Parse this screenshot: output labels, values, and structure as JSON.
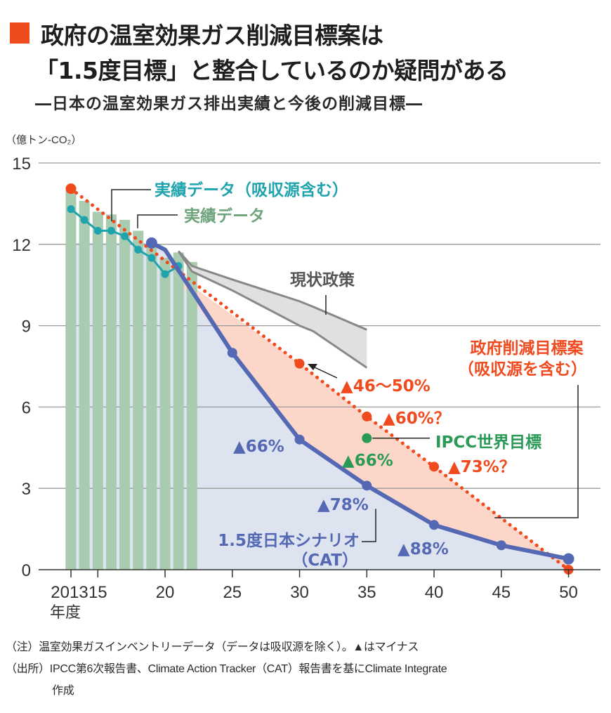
{
  "header": {
    "title_line1": "政府の温室効果ガス削減目標案は",
    "title_line2": "「1.5度目標」と整合しているのか疑問がある",
    "subtitle": "―日本の温室効果ガス排出実績と今後の削減目標―",
    "accent_color": "#f04a1f"
  },
  "chart_data": {
    "type": "line",
    "title": "日本の温室効果ガス排出実績と今後の削減目標",
    "ylabel": "（億トン-CO₂）",
    "xlabel": "年度",
    "ylim": [
      0,
      15
    ],
    "xlim": [
      2012,
      2052
    ],
    "y_ticks": [
      0,
      3,
      6,
      9,
      12,
      15
    ],
    "x_ticks": [
      {
        "value": 2013,
        "label": "2013"
      },
      {
        "value": 2015,
        "label": "15"
      },
      {
        "value": 2020,
        "label": "20"
      },
      {
        "value": 2025,
        "label": "25"
      },
      {
        "value": 2030,
        "label": "30"
      },
      {
        "value": 2035,
        "label": "35"
      },
      {
        "value": 2040,
        "label": "40"
      },
      {
        "value": 2045,
        "label": "45"
      },
      {
        "value": 2050,
        "label": "50"
      }
    ],
    "x_unit_label": "年度",
    "grid": true,
    "series": [
      {
        "name": "実績データ",
        "kind": "bar",
        "color": "#a9cbb0",
        "label_color": "#6fa37c",
        "x": [
          2013,
          2014,
          2015,
          2016,
          2017,
          2018,
          2019,
          2020,
          2021,
          2022
        ],
        "values": [
          14.1,
          13.6,
          13.2,
          13.1,
          12.9,
          12.5,
          12.1,
          11.5,
          11.7,
          11.35
        ]
      },
      {
        "name": "実績データ（吸収源含む）",
        "kind": "line",
        "color": "#1fa3ad",
        "x": [
          2013,
          2014,
          2015,
          2016,
          2017,
          2018,
          2019,
          2020,
          2021
        ],
        "values": [
          13.3,
          12.9,
          12.5,
          12.5,
          12.3,
          11.8,
          11.5,
          10.9,
          11.2
        ]
      },
      {
        "name": "1.5度日本シナリオ（CAT）",
        "kind": "line",
        "color": "#5468b3",
        "x": [
          2019,
          2020,
          2025,
          2030,
          2035,
          2040,
          2045,
          2050
        ],
        "values": [
          12.05,
          11.8,
          8.0,
          4.8,
          3.1,
          1.65,
          0.9,
          0.4
        ]
      },
      {
        "name": "政府削減目標案（吸収源を含む）",
        "kind": "dotted-line",
        "color": "#f04a1f",
        "x": [
          2013,
          2030,
          2035,
          2040,
          2050
        ],
        "values": [
          14.05,
          7.6,
          5.65,
          3.8,
          0.0
        ]
      },
      {
        "name": "現状政策",
        "kind": "range",
        "color": "#888888",
        "x": [
          2021,
          2022,
          2025,
          2030,
          2031,
          2035
        ],
        "upper": [
          11.75,
          11.2,
          10.7,
          9.9,
          9.7,
          8.85
        ],
        "lower": [
          11.75,
          11.0,
          10.3,
          9.0,
          8.8,
          7.45
        ]
      },
      {
        "name": "IPCC世界目標",
        "kind": "point",
        "color": "#2a9a56",
        "x": [
          2035
        ],
        "values": [
          4.85
        ]
      }
    ],
    "annotations": [
      {
        "text": "実績データ（吸収源含む）",
        "color": "#1fa3ad"
      },
      {
        "text": "実績データ",
        "color": "#6fa37c"
      },
      {
        "text": "現状政策",
        "color": "#555555"
      },
      {
        "text": "政府削減目標案",
        "color": "#f04a1f"
      },
      {
        "text": "（吸収源を含む）",
        "color": "#f04a1f"
      },
      {
        "text": "▲46〜50%",
        "color": "#f04a1f"
      },
      {
        "text": "▲60%？",
        "color": "#f04a1f"
      },
      {
        "text": "▲73%？",
        "color": "#f04a1f"
      },
      {
        "text": "IPCC世界目標",
        "color": "#2a9a56"
      },
      {
        "text": "▲66%",
        "color": "#2a9a56"
      },
      {
        "text": "▲66%",
        "color": "#5468b3"
      },
      {
        "text": "▲78%",
        "color": "#5468b3"
      },
      {
        "text": "▲88%",
        "color": "#5468b3"
      },
      {
        "text": "1.5度日本シナリオ",
        "color": "#5468b3"
      },
      {
        "text": "（CAT）",
        "color": "#5468b3"
      }
    ]
  },
  "notes": {
    "note": "（注）温室効果ガスインベントリーデータ（データは吸収源を除く）。▲はマイナス",
    "source_line1": "（出所）IPCC第6次報告書、Climate Action Tracker（CAT）報告書を基にClimate Integrate",
    "source_line2": "作成"
  }
}
